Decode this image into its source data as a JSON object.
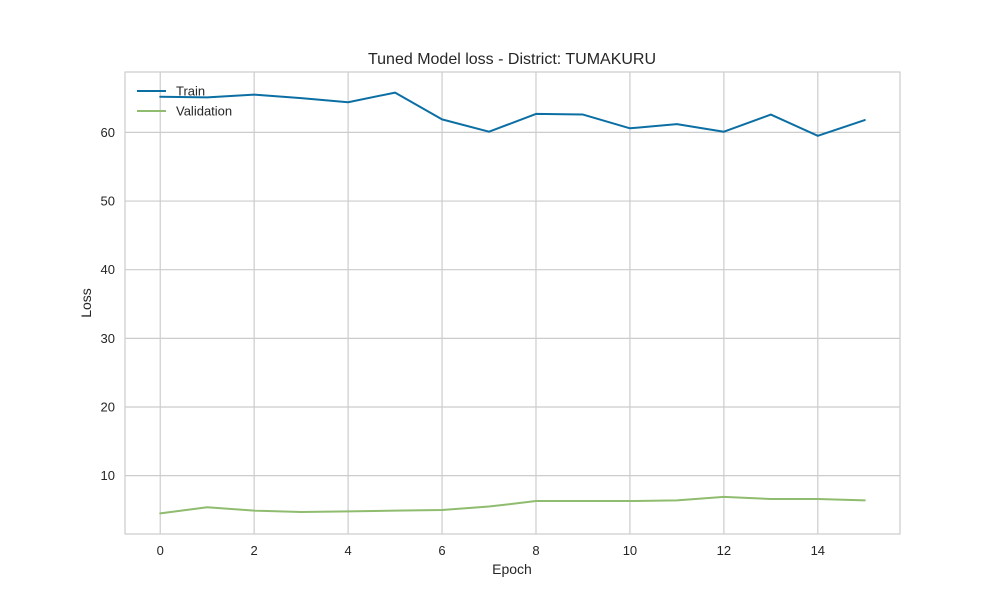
{
  "chart_data": {
    "type": "line",
    "title": "Tuned Model loss - District: TUMAKURU",
    "xlabel": "Epoch",
    "ylabel": "Loss",
    "x": [
      0,
      1,
      2,
      3,
      4,
      5,
      6,
      7,
      8,
      9,
      10,
      11,
      12,
      13,
      14,
      15
    ],
    "xlim": [
      -0.75,
      15.75
    ],
    "ylim": [
      1.5,
      68.8
    ],
    "xticks": [
      0,
      2,
      4,
      6,
      8,
      10,
      12,
      14
    ],
    "yticks": [
      10,
      20,
      30,
      40,
      50,
      60
    ],
    "xtick_labels": [
      "0",
      "2",
      "4",
      "6",
      "8",
      "10",
      "12",
      "14"
    ],
    "ytick_labels": [
      "10",
      "20",
      "30",
      "40",
      "50",
      "60"
    ],
    "grid": true,
    "legend": "top-left",
    "series": [
      {
        "name": "Train",
        "color": "#0b6fa4",
        "values": [
          65.2,
          65.1,
          65.5,
          65.0,
          64.4,
          65.8,
          61.9,
          60.1,
          62.7,
          62.6,
          60.6,
          61.2,
          60.1,
          62.6,
          59.5,
          61.8
        ]
      },
      {
        "name": "Validation",
        "color": "#8fbc6e",
        "values": [
          4.5,
          5.4,
          4.9,
          4.7,
          4.8,
          4.9,
          5.0,
          5.5,
          6.3,
          6.3,
          6.3,
          6.4,
          6.9,
          6.6,
          6.6,
          6.4
        ]
      }
    ]
  }
}
